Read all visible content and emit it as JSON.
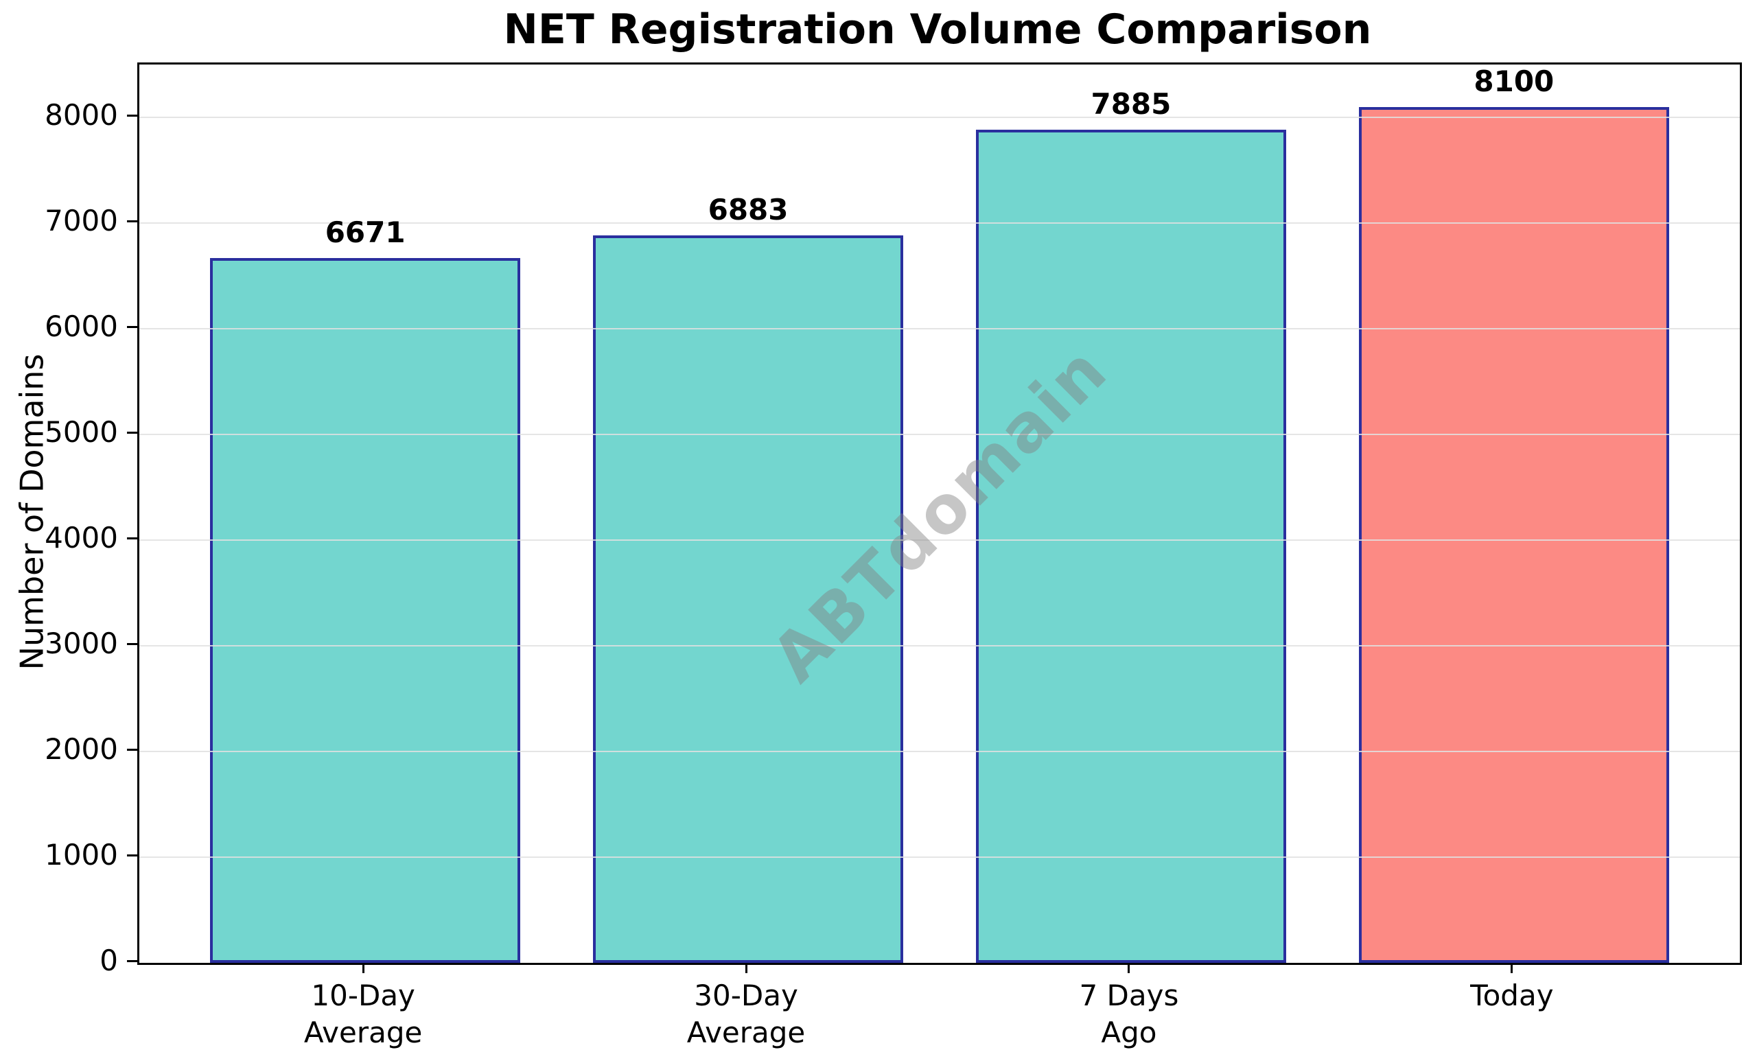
{
  "chart_data": {
    "type": "bar",
    "title": "NET Registration Volume Comparison",
    "xlabel": "",
    "ylabel": "Number of Domains",
    "categories": [
      "10-Day\nAverage",
      "30-Day\nAverage",
      "7 Days\nAgo",
      "Today"
    ],
    "values": [
      6671,
      6883,
      7885,
      8100
    ],
    "value_labels": [
      "6671",
      "6883",
      "7885",
      "8100"
    ],
    "yticks": [
      0,
      1000,
      2000,
      3000,
      4000,
      5000,
      6000,
      7000,
      8000
    ],
    "ylim": [
      0,
      8500
    ],
    "grid": true,
    "legend": "none",
    "watermark": "ABTdomain",
    "colors": {
      "bar_fills": [
        "#73D6CF",
        "#73D6CF",
        "#73D6CF",
        "#FC8A84"
      ],
      "bar_edge": "#2A2F9E",
      "gridline": "#E0E0E0",
      "spine": "#000000",
      "text": "#000000",
      "watermark": "#808080",
      "background": "#FFFFFF"
    }
  }
}
